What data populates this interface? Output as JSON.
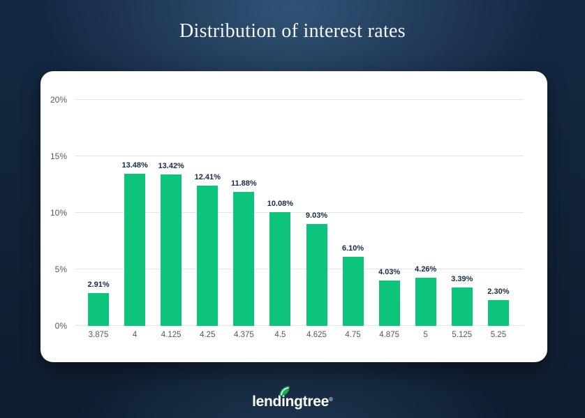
{
  "title": "Distribution of interest rates",
  "logo": {
    "text": "lendingtree",
    "registered": "®"
  },
  "colors": {
    "background_navy": "#112236",
    "card_white": "#ffffff",
    "bar_green": "#0cc47c",
    "value_label_navy": "#16294b",
    "axis_gray": "#54585d",
    "gridline_gray": "#e2e4e6",
    "title_white": "#f3f6f9",
    "leaf_green": "#1aab51"
  },
  "chart_data": {
    "type": "bar",
    "title": "Distribution of interest rates",
    "categories": [
      "3.875",
      "4",
      "4.125",
      "4.25",
      "4.375",
      "4.5",
      "4.625",
      "4.75",
      "4.875",
      "5",
      "5.125",
      "5.25"
    ],
    "values": [
      2.91,
      13.48,
      13.42,
      12.41,
      11.88,
      10.08,
      9.03,
      6.1,
      4.03,
      4.26,
      3.39,
      2.3
    ],
    "value_labels": [
      "2.91%",
      "13.48%",
      "13.42%",
      "12.41%",
      "11.88%",
      "10.08%",
      "9.03%",
      "6.10%",
      "4.03%",
      "4.26%",
      "3.39%",
      "2.30%"
    ],
    "xlabel": "",
    "ylabel": "",
    "ylim": [
      0,
      20
    ],
    "y_ticks": [
      0,
      5,
      10,
      15,
      20
    ],
    "y_tick_labels": [
      "0%",
      "5%",
      "10%",
      "15%",
      "20%"
    ],
    "grid": true,
    "legend": false,
    "bar_color": "#0cc47c"
  }
}
